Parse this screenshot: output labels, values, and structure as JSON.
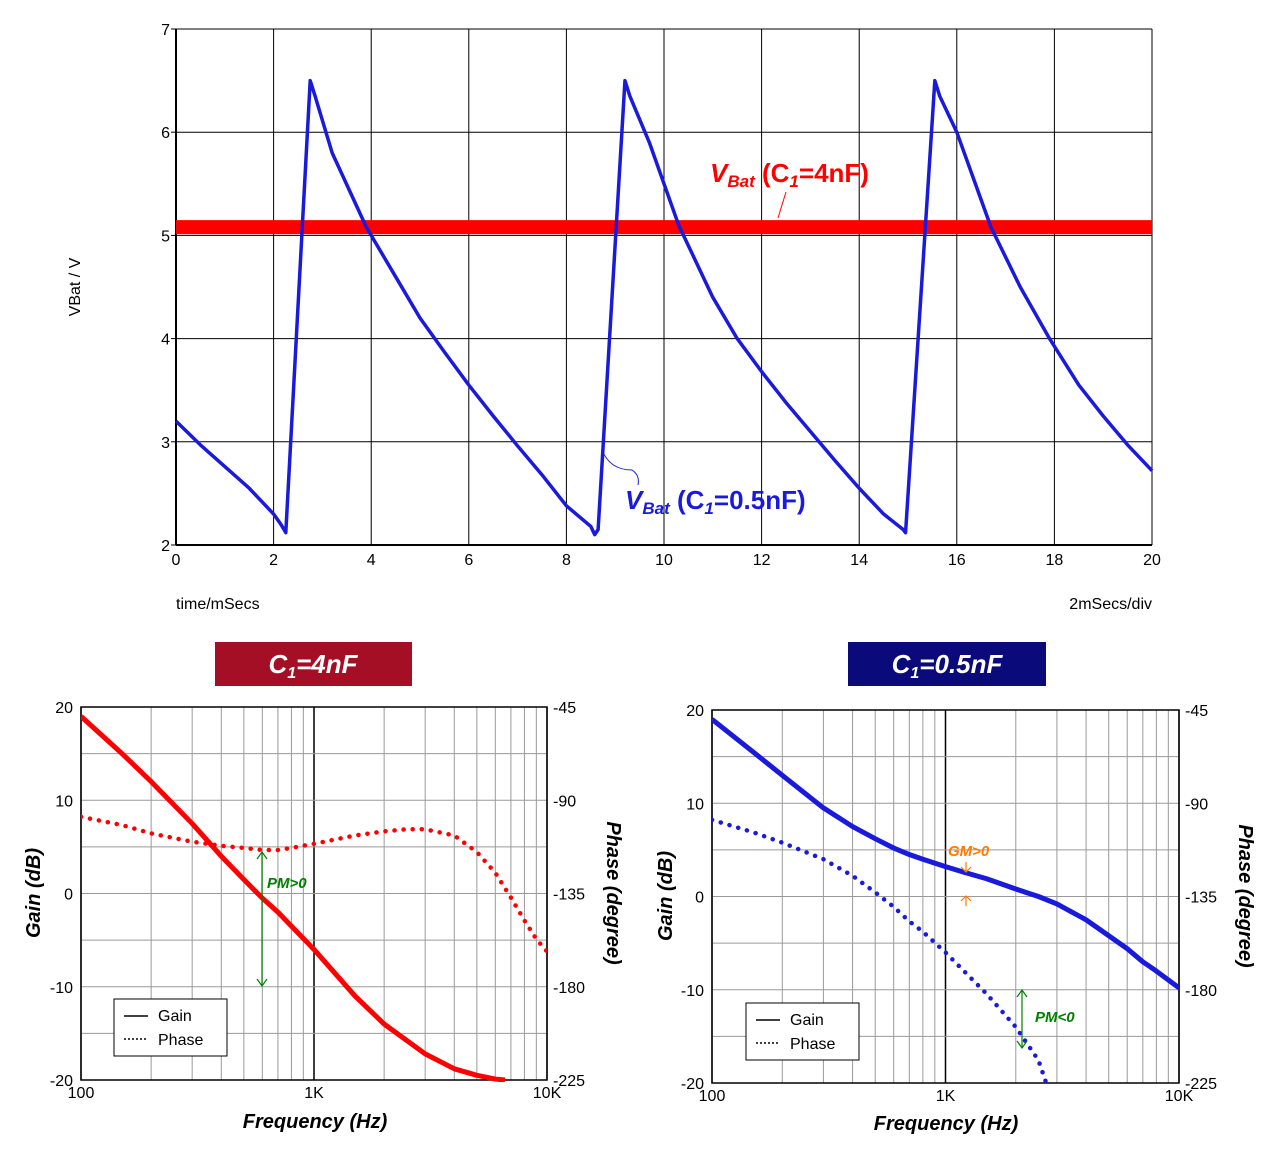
{
  "colors": {
    "red": "#ff0000",
    "blue": "#1a1adc",
    "green": "#008000",
    "orange": "#ff7a00",
    "title_red_bg": "#a50f25",
    "title_blue_bg": "#0a0a7a"
  },
  "chart_data": [
    {
      "type": "line",
      "xlabel": "time/mSecs",
      "ylabel": "VBat / V",
      "xlim": [
        0,
        20
      ],
      "ylim": [
        2,
        7
      ],
      "x_ticks": [
        "0",
        "2",
        "4",
        "6",
        "8",
        "10",
        "12",
        "14",
        "16",
        "18",
        "20"
      ],
      "y_ticks": [
        "2",
        "3",
        "4",
        "5",
        "6",
        "7"
      ],
      "scale_note": "2mSecs/div",
      "grid": true,
      "series": [
        {
          "name": "VBat (C1=4nF)",
          "label_main": "V",
          "label_sub": "Bat",
          "label_rest": " (C",
          "label_sub2": "1",
          "label_end": "=4nF)",
          "color": "red",
          "x": [
            0,
            20
          ],
          "y": [
            5.08,
            5.08
          ]
        },
        {
          "name": "VBat (C1=0.5nF)",
          "label_main": "V",
          "label_sub": "Bat",
          "label_rest": " (C",
          "label_sub2": "1",
          "label_end": "=0.5nF)",
          "color": "blue",
          "x": [
            0,
            0.5,
            1.0,
            1.5,
            2.0,
            2.15,
            2.25,
            2.75,
            2.85,
            3.2,
            3.9,
            4.5,
            5.0,
            5.5,
            6.0,
            6.5,
            7.0,
            7.5,
            8.0,
            8.5,
            8.58,
            8.65,
            9.2,
            9.3,
            9.7,
            10.3,
            11.0,
            11.5,
            12.0,
            12.5,
            13.0,
            13.5,
            14.0,
            14.5,
            14.9,
            14.95,
            15.55,
            15.65,
            16.0,
            16.7,
            17.3,
            17.9,
            18.5,
            19.0,
            19.5,
            20.0
          ],
          "y": [
            3.2,
            2.97,
            2.76,
            2.55,
            2.3,
            2.2,
            2.12,
            6.5,
            6.35,
            5.8,
            5.08,
            4.6,
            4.2,
            3.87,
            3.55,
            3.25,
            2.96,
            2.68,
            2.38,
            2.18,
            2.1,
            2.15,
            6.5,
            6.35,
            5.9,
            5.1,
            4.4,
            4.0,
            3.68,
            3.38,
            3.1,
            2.82,
            2.55,
            2.3,
            2.15,
            2.12,
            6.5,
            6.35,
            6.0,
            5.08,
            4.5,
            4.0,
            3.55,
            3.25,
            2.97,
            2.72
          ]
        }
      ]
    },
    {
      "type": "line",
      "title_main": "C",
      "title_sub": "1",
      "title_rest": "=4nF",
      "xlabel": "Frequency (Hz)",
      "ylabel": "Gain (dB)",
      "y2label": "Phase (degree)",
      "xscale": "log",
      "xlim": [
        100,
        10000
      ],
      "ylim": [
        -20,
        20
      ],
      "y2lim": [
        -225,
        -45
      ],
      "x_ticks": [
        "100",
        "1K",
        "10K"
      ],
      "y_ticks": [
        "20",
        "10",
        "0",
        "-10",
        "-20"
      ],
      "y2_ticks": [
        "-45",
        "-90",
        "-135",
        "-180",
        "-225"
      ],
      "legend": {
        "position": "bottom-left",
        "gain_label": "Gain",
        "phase_label": "Phase"
      },
      "annotation": "PM>0",
      "grid": true,
      "series": [
        {
          "name": "Gain",
          "color": "red",
          "style": "solid",
          "x": [
            100,
            150,
            200,
            300,
            400,
            500,
            600,
            700,
            800,
            1000,
            1500,
            2000,
            3000,
            4000,
            5000,
            6000,
            6600
          ],
          "y": [
            19,
            15,
            12,
            7.5,
            4,
            1.5,
            -0.5,
            -2,
            -3.5,
            -6,
            -11,
            -14,
            -17.2,
            -18.8,
            -19.5,
            -19.9,
            -20
          ]
        },
        {
          "name": "Phase",
          "color": "red",
          "style": "dotted",
          "x": [
            100,
            150,
            200,
            300,
            400,
            500,
            600,
            700,
            800,
            1000,
            1500,
            2000,
            2500,
            3000,
            4000,
            5000,
            6000,
            7000,
            8000,
            9000,
            10000
          ],
          "y": [
            -98,
            -102,
            -106,
            -110,
            -112,
            -113,
            -114,
            -114,
            -113,
            -111,
            -107,
            -105,
            -104,
            -104,
            -107,
            -115,
            -125,
            -137,
            -148,
            -157,
            -163
          ]
        }
      ]
    },
    {
      "type": "line",
      "title_main": "C",
      "title_sub": "1",
      "title_rest": "=0.5nF",
      "xlabel": "Frequency (Hz)",
      "ylabel": "Gain (dB)",
      "y2label": "Phase (degree)",
      "xscale": "log",
      "xlim": [
        100,
        10000
      ],
      "ylim": [
        -20,
        20
      ],
      "y2lim": [
        -225,
        -45
      ],
      "x_ticks": [
        "100",
        "1K",
        "10K"
      ],
      "y_ticks": [
        "20",
        "10",
        "0",
        "-10",
        "-20"
      ],
      "y2_ticks": [
        "-45",
        "-90",
        "-135",
        "-180",
        "-225"
      ],
      "legend": {
        "position": "bottom-left",
        "gain_label": "Gain",
        "phase_label": "Phase"
      },
      "annotations": [
        "GM>0",
        "PM<0"
      ],
      "grid": true,
      "series": [
        {
          "name": "Gain",
          "color": "blue",
          "style": "solid",
          "x": [
            100,
            150,
            200,
            300,
            400,
            500,
            600,
            700,
            800,
            1000,
            1200,
            1500,
            2000,
            2500,
            3000,
            4000,
            5000,
            6000,
            7000,
            8000,
            10000
          ],
          "y": [
            19,
            15.5,
            13,
            9.5,
            7.5,
            6.2,
            5.2,
            4.5,
            4,
            3.2,
            2.6,
            1.9,
            0.8,
            0,
            -0.8,
            -2.5,
            -4.2,
            -5.6,
            -7,
            -8,
            -9.8
          ]
        },
        {
          "name": "Phase",
          "color": "blue",
          "style": "dotted",
          "x": [
            100,
            150,
            200,
            300,
            400,
            500,
            600,
            700,
            800,
            1000,
            1200,
            1500,
            2000,
            2500,
            2700
          ],
          "y": [
            -98,
            -104,
            -109,
            -117,
            -125,
            -133,
            -140,
            -147,
            -152,
            -162,
            -171,
            -182,
            -198,
            -214,
            -225
          ]
        }
      ]
    }
  ]
}
